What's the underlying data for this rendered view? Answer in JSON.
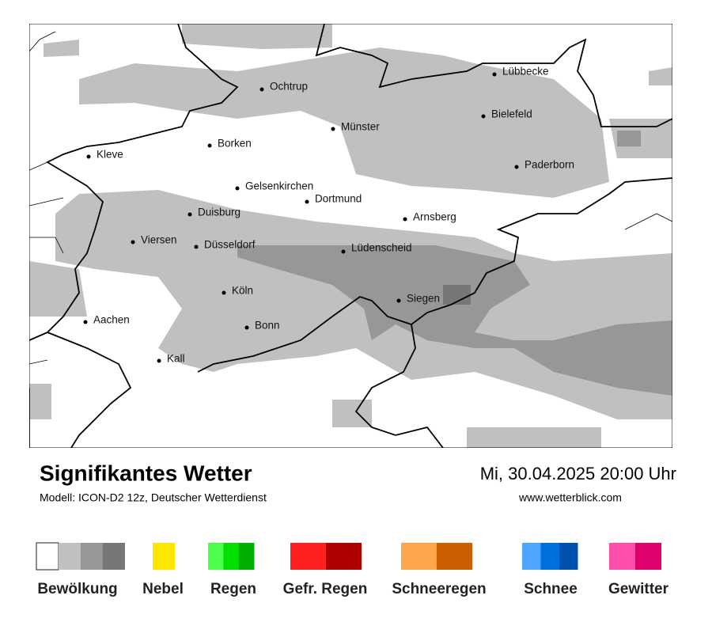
{
  "header": {
    "title": "Signifikantes Wetter",
    "subtitle": "Modell: ICON-D2 12z, Deutscher Wetterdienst",
    "datetime": "Mi, 30.04.2025 20:00 Uhr",
    "website": "www.wetterblick.com"
  },
  "map": {
    "cities": [
      "Lübbecke",
      "Ochtrup",
      "Bielefeld",
      "Münster",
      "Borken",
      "Kleve",
      "Paderborn",
      "Gelsenkirchen",
      "Dortmund",
      "Duisburg",
      "Arnsberg",
      "Viersen",
      "Düsseldorf",
      "Lüdenscheid",
      "Köln",
      "Siegen",
      "Aachen",
      "Bonn",
      "Kall"
    ]
  },
  "legend": {
    "items": [
      {
        "label": "Bewölkung",
        "colors": [
          "#ffffff",
          "#c0c0c0",
          "#979797",
          "#777777"
        ]
      },
      {
        "label": "Nebel",
        "colors": [
          "#ffe600"
        ]
      },
      {
        "label": "Regen",
        "colors": [
          "#4dff4d",
          "#00e000",
          "#00b000"
        ]
      },
      {
        "label": "Gefr. Regen",
        "colors": [
          "#ff2020",
          "#b00000"
        ]
      },
      {
        "label": "Schneeregen",
        "colors": [
          "#ffa64d",
          "#cc6000"
        ]
      },
      {
        "label": "Schnee",
        "colors": [
          "#4da6ff",
          "#0070e0",
          "#0050b0"
        ]
      },
      {
        "label": "Gewitter",
        "colors": [
          "#ff4dae",
          "#e0006e"
        ]
      }
    ]
  }
}
